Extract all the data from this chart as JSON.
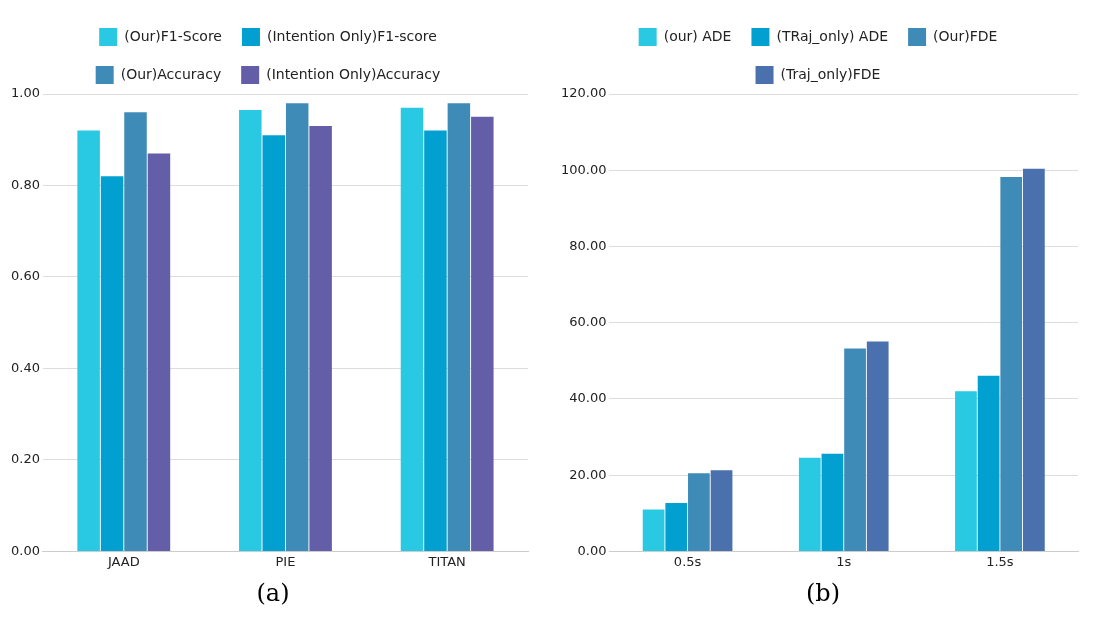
{
  "chart_data": [
    {
      "type": "bar",
      "categories": [
        "JAAD",
        "PIE",
        "TITAN"
      ],
      "series": [
        {
          "name": "(Our)F1-Score",
          "color": "#29c9e3",
          "values": [
            0.92,
            0.965,
            0.97
          ]
        },
        {
          "name": "(Intention Only)F1-score",
          "color": "#02a0d0",
          "values": [
            0.82,
            0.91,
            0.92
          ]
        },
        {
          "name": "(Our)Accuracy",
          "color": "#3f8bb8",
          "values": [
            0.96,
            0.98,
            0.98
          ]
        },
        {
          "name": "(Intention Only)Accuracy",
          "color": "#645ea8",
          "values": [
            0.87,
            0.93,
            0.95
          ]
        }
      ],
      "ylim": [
        0,
        1
      ],
      "yticks": [
        {
          "value": 0,
          "label": "0.00"
        },
        {
          "value": 0.2,
          "label": "0.20"
        },
        {
          "value": 0.4,
          "label": "0.40"
        },
        {
          "value": 0.6,
          "label": "0.60"
        },
        {
          "value": 0.8,
          "label": "0.80"
        },
        {
          "value": 1,
          "label": "1.00"
        }
      ],
      "grid": "y",
      "legend": "top",
      "annotations": [
        "(a)"
      ]
    },
    {
      "type": "bar",
      "categories": [
        "0.5s",
        "1s",
        "1.5s"
      ],
      "series": [
        {
          "name": "(our) ADE",
          "color": "#29c9e3",
          "values": [
            11,
            24.6,
            42
          ]
        },
        {
          "name": "(TRaj_only) ADE",
          "color": "#02a0d0",
          "values": [
            12.7,
            25.6,
            46.1
          ]
        },
        {
          "name": "(Our)FDE",
          "color": "#3f8bb8",
          "values": [
            20.5,
            53.2,
            98.2
          ]
        },
        {
          "name": "(Traj_only)FDE",
          "color": "#4a70ad",
          "values": [
            21.3,
            55.1,
            100.4
          ]
        }
      ],
      "ylim": [
        0,
        120
      ],
      "yticks": [
        {
          "value": 0,
          "label": "0.00"
        },
        {
          "value": 20,
          "label": "20.00"
        },
        {
          "value": 40,
          "label": "40.00"
        },
        {
          "value": 60,
          "label": "60.00"
        },
        {
          "value": 80,
          "label": "80.00"
        },
        {
          "value": 100,
          "label": "100.00"
        },
        {
          "value": 120,
          "label": "120.00"
        }
      ],
      "grid": "y",
      "legend": "top",
      "annotations": [
        "(b)"
      ]
    }
  ]
}
